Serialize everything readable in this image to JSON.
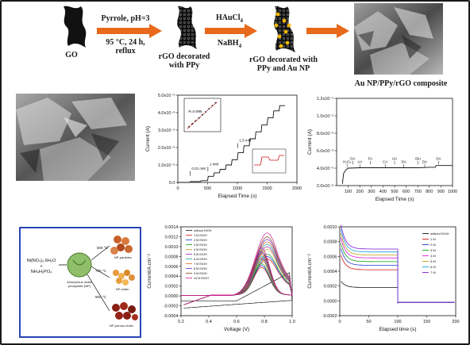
{
  "scheme": {
    "step1_label": "GO",
    "step1_conditions_top": "Pyrrole, pH=3",
    "step1_conditions_bottom_1": "95 °C, 24 h,",
    "step1_conditions_bottom_2": "reflux",
    "step2_label_1": "rGO decorated",
    "step2_label_2": "with PPy",
    "step2_reagent_top": "HAuCl",
    "step2_reagent_top_sub": "4",
    "step2_reagent_bottom": "NaBH",
    "step2_reagent_bottom_sub": "4",
    "step3_label_1": "rGO decorated with",
    "step3_label_2": "PPy and Au NP",
    "step4_label": "Au NP/PPy/rGO  composite",
    "arrow_color": "#e8691c"
  },
  "chart_data": [
    {
      "type": "line",
      "ylabel": "Current (A)",
      "xlabel": "Elapsed Time (s)",
      "xlim": [
        0,
        2000
      ],
      "ylim": [
        0,
        5e-06
      ],
      "x_ticks": [
        "0",
        "500",
        "1000",
        "1500",
        "2000"
      ],
      "y_ticks": [
        "0.0",
        "1.0x10⁻⁶",
        "2.0x10⁻⁶",
        "3.0x10⁻⁶",
        "4.0x10⁻⁶",
        "5.0x10⁻⁶"
      ],
      "annotations": [
        "0.01 mM",
        "1 mM",
        "1.5 mM",
        "R=0.996"
      ],
      "series": [
        {
          "x": [
            0,
            200,
            210,
            380,
            390,
            500,
            510,
            600,
            610,
            700,
            710,
            800,
            810,
            900,
            910,
            1000,
            1010,
            1100,
            1110,
            1200,
            1210,
            1300,
            1310,
            1400,
            1410,
            1500,
            1510,
            1600,
            1610,
            1700,
            1710,
            1800
          ],
          "values": [
            0.0,
            0.0,
            5e-08,
            5e-08,
            1e-07,
            1e-07,
            3.5e-07,
            3.5e-07,
            5.5e-07,
            5.5e-07,
            7.5e-07,
            7.5e-07,
            1e-06,
            1e-06,
            1.3e-06,
            1.3e-06,
            1.7e-06,
            1.7e-06,
            2.1e-06,
            2.1e-06,
            2.5e-06,
            2.5e-06,
            2.9e-06,
            2.9e-06,
            3.3e-06,
            3.3e-06,
            3.7e-06,
            3.7e-06,
            4.1e-06,
            4.1e-06,
            4.4e-06,
            4.4e-06
          ]
        }
      ]
    },
    {
      "type": "line",
      "ylabel": "Current (A)",
      "xlabel": "Elapsed Time (s)",
      "xlim": [
        0,
        1000
      ],
      "ylim": [
        2e-06,
        1.2e-05
      ],
      "x_ticks": [
        "100",
        "200",
        "300",
        "400",
        "500",
        "600",
        "700",
        "800",
        "900",
        "1000"
      ],
      "y_ticks": [
        "2.0x10⁻⁶",
        "4.0x10⁻⁶",
        "6.0x10⁻⁶",
        "8.0x10⁻⁶",
        "1.0x10⁻⁵",
        "1.2x10⁻⁵"
      ],
      "annotations": [
        "H₂O₂",
        "DA",
        "AA",
        "FA",
        "CA",
        "UA",
        "DA",
        "Glu",
        "DA",
        "DA"
      ],
      "series": [
        {
          "x": [
            50,
            60,
            80,
            100,
            200,
            300,
            400,
            500,
            600,
            700,
            800,
            850,
            860,
            900,
            1000
          ],
          "values": [
            2.2e-06,
            3.4e-06,
            3.8e-06,
            4e-06,
            4.05e-06,
            4.05e-06,
            4.05e-06,
            4.05e-06,
            4.05e-06,
            4.05e-06,
            4.1e-06,
            4.1e-06,
            4.3e-06,
            4.3e-06,
            4.3e-06
          ]
        }
      ]
    },
    {
      "type": "line",
      "ylabel": "Current/A cm⁻²",
      "xlabel": "Voltage (V)",
      "xlim": [
        0.2,
        1.0
      ],
      "ylim": [
        -0.0004,
        0.0014
      ],
      "x_ticks": [
        "0.2",
        "0.4",
        "0.6",
        "0.8",
        "1.0"
      ],
      "y_ticks": [
        "-0.0004",
        "-0.0002",
        "0.0000",
        "0.0002",
        "0.0004",
        "0.0006",
        "0.0008",
        "0.0010",
        "0.0012",
        "0.0014"
      ],
      "legend": [
        "without EtOH",
        "1 M EtOH",
        "2 M EtOH",
        "3 M EtOH",
        "4 M EtOH",
        "5 M EtOH",
        "6 M EtOH",
        "7 M EtOH",
        "8 M EtOH",
        "9 M EtOH",
        "10 M EtOH"
      ],
      "peaks": [
        0.0005,
        0.00075,
        0.0008,
        0.00085,
        0.00095,
        0.001,
        0.00105,
        0.0011,
        0.00115,
        0.0012,
        0.00128
      ]
    },
    {
      "type": "line",
      "ylabel": "Current/A cm⁻²",
      "xlabel": "Elapsed time (s)",
      "xlim": [
        0,
        200
      ],
      "ylim": [
        -0.0002,
        0.001
      ],
      "x_ticks": [
        "0",
        "50",
        "100",
        "150",
        "200"
      ],
      "y_ticks": [
        "-0.0002",
        "0.0000",
        "0.0002",
        "0.0004",
        "0.0006",
        "0.0008",
        "0.0010"
      ],
      "legend": [
        "without EtOH",
        "1 M",
        "2 M",
        "3 M",
        "4 M",
        "5 M",
        "6 M",
        "7 M"
      ],
      "plateaus": [
        0.00018,
        0.00042,
        0.00048,
        0.00053,
        0.00058,
        0.00062,
        0.00066,
        0.0007
      ]
    }
  ],
  "np_inset": {
    "precursor_1": "Ni(NO₃)₂.6H₂O",
    "precursor_plus": "+",
    "precursor_2": "NH₄H₂PO₄",
    "center_label_1": "Amorphous nickel",
    "center_label_2": "phosphate (NP)",
    "temp_1": "500 °C",
    "temp_2": "700 °C",
    "temp_3": "900 °C",
    "product_1": "NP-particles",
    "product_2": "NP-chain",
    "product_3": "NP-porous chain"
  },
  "annotations_small": {
    "chart1_arrow_1": "0.01 mM",
    "chart1_arrow_2": "1 mM",
    "chart1_arrow_3": "1.5 mM",
    "chart1_inset_r": "R=0.996"
  }
}
